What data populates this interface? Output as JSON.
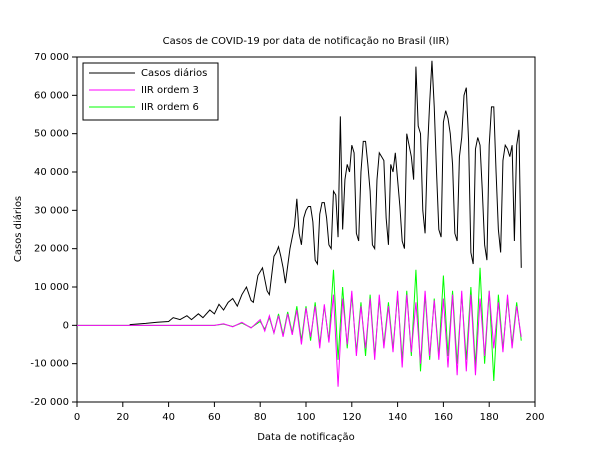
{
  "chart_data": {
    "type": "line",
    "title": "Casos de COVID-19 por data de notificação no Brasil (IIR)",
    "xlabel": "Data de notificação",
    "ylabel": "Casos diários",
    "xlim": [
      0,
      200
    ],
    "ylim": [
      -20000,
      70000
    ],
    "xticks": [
      0,
      20,
      40,
      60,
      80,
      100,
      120,
      140,
      160,
      180,
      200
    ],
    "yticks": [
      {
        "value": -20000,
        "label": "-20 000"
      },
      {
        "value": -10000,
        "label": "-10 000"
      },
      0,
      {
        "value": 10000,
        "label": "10 000"
      },
      {
        "value": 20000,
        "label": "20 000"
      },
      {
        "value": 30000,
        "label": "30 000"
      },
      {
        "value": 40000,
        "label": "40 000"
      },
      {
        "value": 50000,
        "label": "50 000"
      },
      {
        "value": 60000,
        "label": "60 000"
      },
      {
        "value": 70000,
        "label": "70 000"
      }
    ],
    "legend": "upper left",
    "series": [
      {
        "name": "Casos diários",
        "color": "#000000",
        "x": [
          23,
          30,
          35,
          40,
          42,
          45,
          48,
          50,
          53,
          55,
          58,
          60,
          62,
          64,
          66,
          68,
          70,
          72,
          74,
          76,
          77,
          79,
          81,
          83,
          84,
          86,
          87,
          88,
          89,
          90,
          91,
          93,
          95,
          96,
          97,
          98,
          99,
          100,
          101,
          102,
          103,
          104,
          105,
          106,
          107,
          108,
          109,
          110,
          111,
          112,
          113,
          114,
          115,
          116,
          117,
          118,
          119,
          120,
          121,
          122,
          123,
          124,
          125,
          126,
          127,
          128,
          129,
          130,
          131,
          132,
          133,
          134,
          135,
          136,
          137,
          138,
          139,
          140,
          141,
          142,
          143,
          144,
          145,
          146,
          147,
          148,
          149,
          150,
          151,
          152,
          153,
          154,
          155,
          156,
          157,
          158,
          159,
          160,
          161,
          162,
          163,
          164,
          165,
          166,
          167,
          168,
          169,
          170,
          171,
          172,
          173,
          174,
          175,
          176,
          177,
          178,
          179,
          180,
          181,
          182,
          183,
          184,
          185,
          186,
          187,
          188,
          189,
          190,
          191,
          192,
          193,
          194
        ],
        "values": [
          200,
          500,
          800,
          1000,
          2000,
          1500,
          2500,
          1500,
          3000,
          2000,
          4000,
          3000,
          5500,
          4000,
          6000,
          7000,
          5000,
          8000,
          10000,
          6500,
          6000,
          13000,
          15000,
          9000,
          8000,
          18000,
          19000,
          20500,
          18000,
          15000,
          11000,
          20000,
          26000,
          33000,
          24000,
          21000,
          28000,
          30000,
          31000,
          31000,
          27000,
          17000,
          16000,
          29000,
          32000,
          32000,
          28000,
          21000,
          20000,
          35000,
          34000,
          23000,
          54500,
          25000,
          38000,
          42000,
          40000,
          47000,
          45000,
          24000,
          22000,
          40000,
          48000,
          48000,
          42000,
          35000,
          21000,
          20000,
          38000,
          45000,
          44000,
          43000,
          28000,
          21000,
          42000,
          40000,
          45000,
          38000,
          31000,
          22000,
          20000,
          50000,
          47000,
          44000,
          38000,
          67500,
          52000,
          50000,
          30000,
          24000,
          45000,
          58000,
          69000,
          57000,
          40000,
          25000,
          23000,
          53000,
          56000,
          54000,
          50000,
          42000,
          24000,
          22000,
          44000,
          49000,
          60000,
          62000,
          48000,
          19000,
          16000,
          46000,
          49000,
          47000,
          35000,
          21000,
          17000,
          47000,
          57000,
          57000,
          40000,
          25000,
          19000,
          43000,
          47000,
          46000,
          44000,
          47000,
          22000,
          47000,
          51000,
          15000
        ]
      },
      {
        "name": "IIR ordem 3",
        "color": "#ff00ff",
        "x": [
          0,
          60,
          64,
          68,
          72,
          76,
          80,
          82,
          84,
          86,
          88,
          90,
          92,
          94,
          96,
          98,
          100,
          102,
          104,
          106,
          108,
          110,
          112,
          114,
          116,
          118,
          120,
          122,
          124,
          126,
          128,
          130,
          132,
          134,
          136,
          138,
          140,
          142,
          144,
          146,
          148,
          150,
          152,
          154,
          156,
          158,
          160,
          162,
          164,
          166,
          168,
          170,
          172,
          174,
          176,
          178,
          180,
          182,
          184,
          186,
          188,
          190,
          192,
          194
        ],
        "values": [
          0,
          0,
          400,
          -400,
          800,
          -700,
          1500,
          -1500,
          2500,
          -2000,
          2500,
          -3000,
          3000,
          -2500,
          4000,
          -5000,
          4500,
          -3000,
          5000,
          -6000,
          5500,
          -4500,
          8000,
          -16000,
          7000,
          -5000,
          9000,
          -8000,
          5000,
          -6000,
          7000,
          -9000,
          8000,
          -6000,
          5000,
          -7000,
          9000,
          -11000,
          8000,
          -7000,
          6000,
          -10000,
          9000,
          -8000,
          6500,
          -9000,
          7000,
          -11000,
          8000,
          -13000,
          9000,
          -12000,
          8000,
          -13000,
          7000,
          -8000,
          9000,
          -6000,
          6000,
          -7000,
          8000,
          -6000,
          5000,
          -3000
        ]
      },
      {
        "name": "IIR ordem 6",
        "color": "#00ff00",
        "x": [
          0,
          60,
          64,
          68,
          72,
          76,
          80,
          82,
          84,
          86,
          88,
          90,
          92,
          94,
          96,
          98,
          100,
          102,
          104,
          106,
          108,
          110,
          112,
          114,
          116,
          118,
          120,
          122,
          124,
          126,
          128,
          130,
          132,
          134,
          136,
          138,
          140,
          142,
          144,
          146,
          148,
          150,
          152,
          154,
          156,
          158,
          160,
          162,
          164,
          166,
          168,
          170,
          172,
          174,
          176,
          178,
          180,
          182,
          184,
          186,
          188,
          190,
          192,
          194
        ],
        "values": [
          0,
          0,
          300,
          -300,
          600,
          -600,
          1000,
          -1000,
          2000,
          -2000,
          3000,
          -2500,
          3500,
          -2000,
          5000,
          -4000,
          5000,
          -4000,
          6000,
          -5000,
          5000,
          -4000,
          14500,
          -9000,
          10000,
          -6000,
          8000,
          -7000,
          6000,
          -8000,
          8000,
          -8000,
          7000,
          -5000,
          6000,
          -6000,
          8000,
          -9000,
          9000,
          -8000,
          14500,
          -12000,
          8000,
          -9000,
          7000,
          -8000,
          13000,
          -8000,
          9000,
          -10000,
          8000,
          -9000,
          10000,
          -11000,
          15000,
          -10000,
          9000,
          -14500,
          8000,
          -6000,
          7000,
          -5000,
          6000,
          -4000
        ]
      }
    ]
  }
}
